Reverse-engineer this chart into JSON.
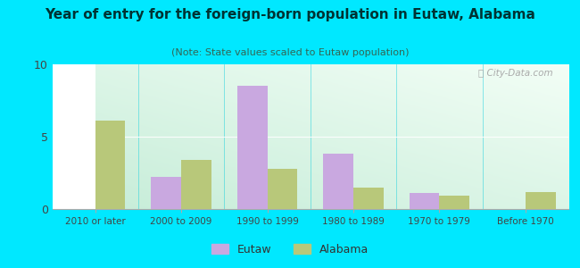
{
  "title": "Year of entry for the foreign-born population in Eutaw, Alabama",
  "subtitle": "(Note: State values scaled to Eutaw population)",
  "categories": [
    "2010 or later",
    "2000 to 2009",
    "1990 to 1999",
    "1980 to 1989",
    "1970 to 1979",
    "Before 1970"
  ],
  "eutaw_values": [
    0,
    2.2,
    8.5,
    3.8,
    1.1,
    0
  ],
  "alabama_values": [
    6.1,
    3.4,
    2.8,
    1.5,
    0.9,
    1.2
  ],
  "eutaw_color": "#c9a8e0",
  "alabama_color": "#b8c87a",
  "bg_outer": "#00e8ff",
  "ylim": [
    0,
    10
  ],
  "yticks": [
    0,
    5,
    10
  ],
  "bar_width": 0.35,
  "legend_labels": [
    "Eutaw",
    "Alabama"
  ],
  "watermark": "Ⓜ City-Data.com",
  "title_color": "#003333",
  "subtitle_color": "#336655"
}
